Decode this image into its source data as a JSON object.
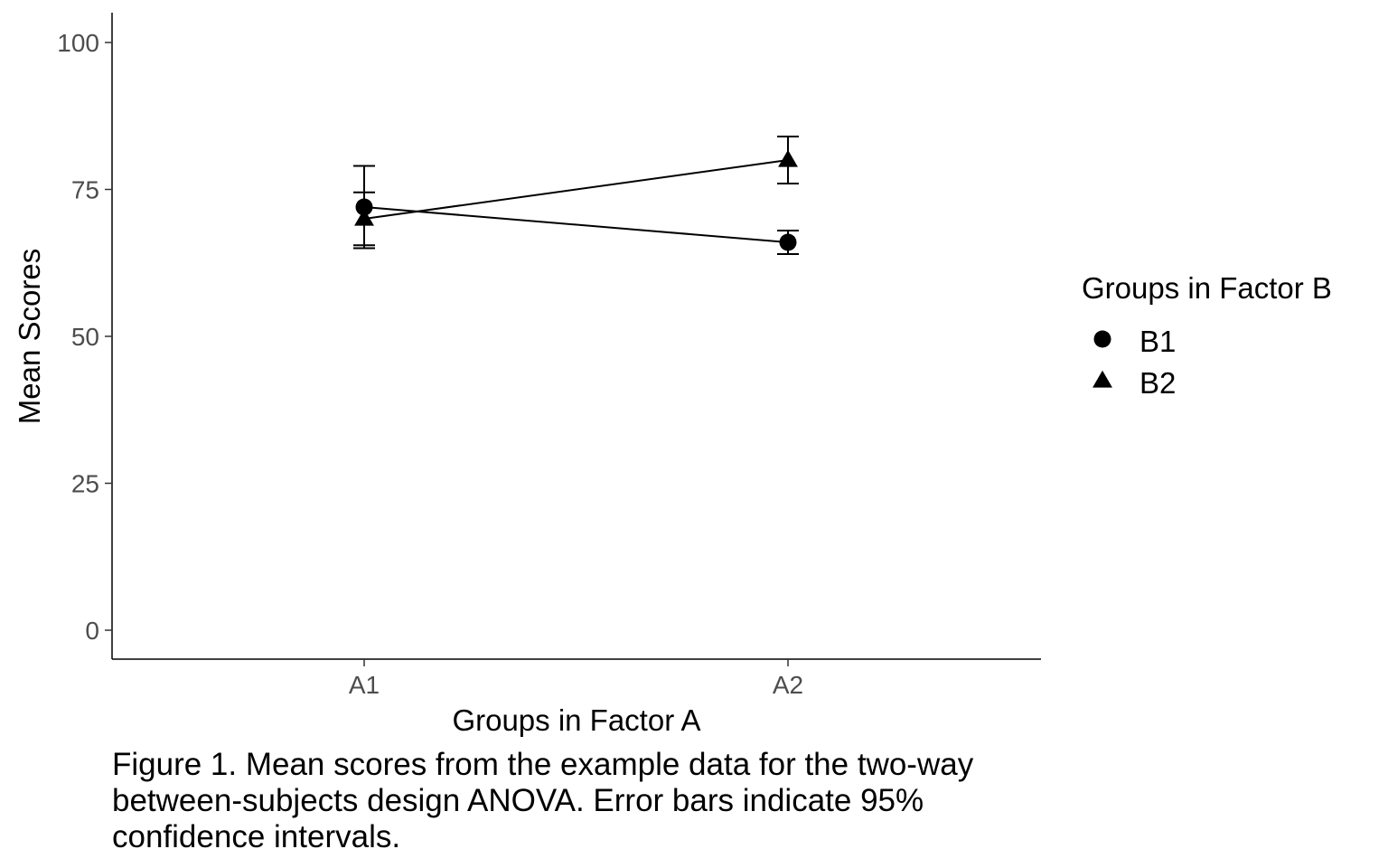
{
  "chart_data": {
    "type": "line",
    "title": "",
    "xlabel": "Groups in Factor A",
    "ylabel": "Mean Scores",
    "categories": [
      "A1",
      "A2"
    ],
    "ylim": [
      -5,
      105
    ],
    "yticks": [
      0,
      25,
      50,
      75,
      100
    ],
    "ytick_labels": [
      "0",
      "25",
      "50",
      "75",
      "100"
    ],
    "grid": false,
    "legend": {
      "title": "Groups in Factor B",
      "position": "right"
    },
    "series": [
      {
        "name": "B1",
        "marker": "circle",
        "values": [
          72,
          66
        ],
        "ci_lower": [
          65,
          64
        ],
        "ci_upper": [
          79,
          68
        ]
      },
      {
        "name": "B2",
        "marker": "triangle",
        "values": [
          70,
          80
        ],
        "ci_lower": [
          65.5,
          76
        ],
        "ci_upper": [
          74.5,
          84
        ]
      }
    ],
    "line_color": "#000000"
  },
  "caption": "Figure 1. Mean scores from the example data for the two-way between-subjects design ANOVA. Error bars indicate 95% confidence intervals."
}
